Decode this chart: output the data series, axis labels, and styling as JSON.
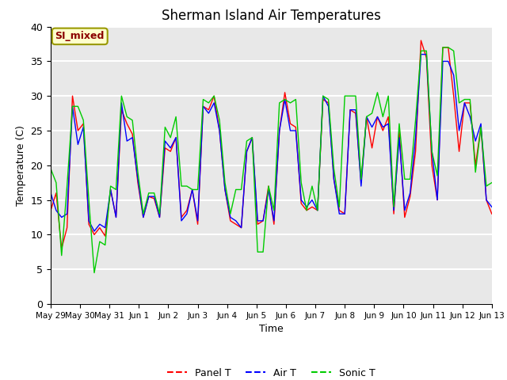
{
  "title": "Sherman Island Air Temperatures",
  "xlabel": "Time",
  "ylabel": "Temperature (C)",
  "ylim": [
    0,
    40
  ],
  "yticks": [
    0,
    5,
    10,
    15,
    20,
    25,
    30,
    35,
    40
  ],
  "annotation": "SI_mixed",
  "annotation_color": "#8B0000",
  "annotation_bg": "#ffffcc",
  "annotation_edge": "#999900",
  "bg_color": "#e8e8e8",
  "grid_color": "white",
  "line_colors": {
    "panel": "#ff0000",
    "air": "#0000ff",
    "sonic": "#00cc00"
  },
  "legend_labels": [
    "Panel T",
    "Air T",
    "Sonic T"
  ],
  "xtick_labels": [
    "May 29",
    "May 30",
    "May 31",
    "Jun 1",
    "Jun 2",
    "Jun 3",
    "Jun 4",
    "Jun 5",
    "Jun 6",
    "Jun 7",
    "Jun 8",
    "Jun 9",
    "Jun 10",
    "Jun 11",
    "Jun 12",
    "Jun 13"
  ],
  "panel_t": [
    13.5,
    16.0,
    8.0,
    11.0,
    30.0,
    25.0,
    26.0,
    11.5,
    10.0,
    11.0,
    9.8,
    16.5,
    12.5,
    28.0,
    26.0,
    24.5,
    17.5,
    12.5,
    15.5,
    15.2,
    12.5,
    22.5,
    22.0,
    24.0,
    12.5,
    13.5,
    16.5,
    11.5,
    28.5,
    28.0,
    30.0,
    25.0,
    16.5,
    12.0,
    11.5,
    11.0,
    22.0,
    24.0,
    11.5,
    12.0,
    17.0,
    11.5,
    25.0,
    30.5,
    26.0,
    25.5,
    14.5,
    13.5,
    14.0,
    13.5,
    29.5,
    29.0,
    18.0,
    13.5,
    13.0,
    28.0,
    27.5,
    17.5,
    27.0,
    22.5,
    27.0,
    25.0,
    27.0,
    13.0,
    25.0,
    12.5,
    15.5,
    22.0,
    38.0,
    35.5,
    20.0,
    15.0,
    37.0,
    37.0,
    30.0,
    22.0,
    29.0,
    29.0,
    20.0,
    25.5,
    15.0,
    13.0
  ],
  "air_t": [
    16.0,
    13.5,
    12.5,
    13.0,
    28.5,
    23.0,
    25.5,
    12.0,
    10.5,
    11.5,
    11.0,
    16.5,
    12.5,
    29.0,
    23.5,
    24.0,
    18.0,
    12.5,
    15.5,
    15.5,
    12.5,
    23.5,
    22.5,
    24.0,
    12.0,
    13.0,
    16.5,
    12.0,
    28.5,
    27.5,
    29.0,
    25.0,
    16.5,
    12.5,
    12.0,
    11.0,
    22.0,
    24.0,
    12.0,
    12.0,
    16.5,
    12.0,
    25.0,
    29.5,
    25.0,
    25.0,
    15.0,
    14.0,
    15.0,
    13.5,
    30.0,
    28.5,
    18.0,
    13.0,
    13.0,
    28.0,
    28.0,
    17.0,
    27.0,
    25.5,
    27.0,
    25.5,
    26.0,
    13.5,
    24.0,
    13.5,
    16.0,
    24.0,
    36.0,
    36.0,
    22.0,
    15.0,
    35.0,
    35.0,
    33.0,
    25.0,
    29.0,
    27.0,
    23.5,
    26.0,
    15.0,
    14.0
  ],
  "sonic_t": [
    19.5,
    17.5,
    7.0,
    17.0,
    28.5,
    28.5,
    26.5,
    15.0,
    4.5,
    9.0,
    8.5,
    17.0,
    16.5,
    30.0,
    27.0,
    26.5,
    19.0,
    13.0,
    16.0,
    16.0,
    13.0,
    25.5,
    24.0,
    27.0,
    17.0,
    17.0,
    16.5,
    16.5,
    29.5,
    29.0,
    30.0,
    26.5,
    17.5,
    13.0,
    16.5,
    16.5,
    23.5,
    24.0,
    7.5,
    7.5,
    17.0,
    13.5,
    29.0,
    29.5,
    29.0,
    29.5,
    17.5,
    13.5,
    17.0,
    13.5,
    30.0,
    29.5,
    19.5,
    14.0,
    30.0,
    30.0,
    30.0,
    18.0,
    27.0,
    27.5,
    30.5,
    27.0,
    30.0,
    14.0,
    26.0,
    18.0,
    18.0,
    26.5,
    36.5,
    36.5,
    22.0,
    18.5,
    37.0,
    37.0,
    36.5,
    29.0,
    29.5,
    29.5,
    19.0,
    25.5,
    17.0,
    17.5
  ]
}
